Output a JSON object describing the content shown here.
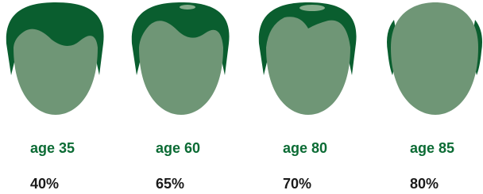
{
  "items": [
    {
      "label": "age 35",
      "percent": "40%"
    },
    {
      "label": "age 60",
      "percent": "65%"
    },
    {
      "label": "age 80",
      "percent": "70%"
    },
    {
      "label": "age 85",
      "percent": "80%"
    }
  ]
}
